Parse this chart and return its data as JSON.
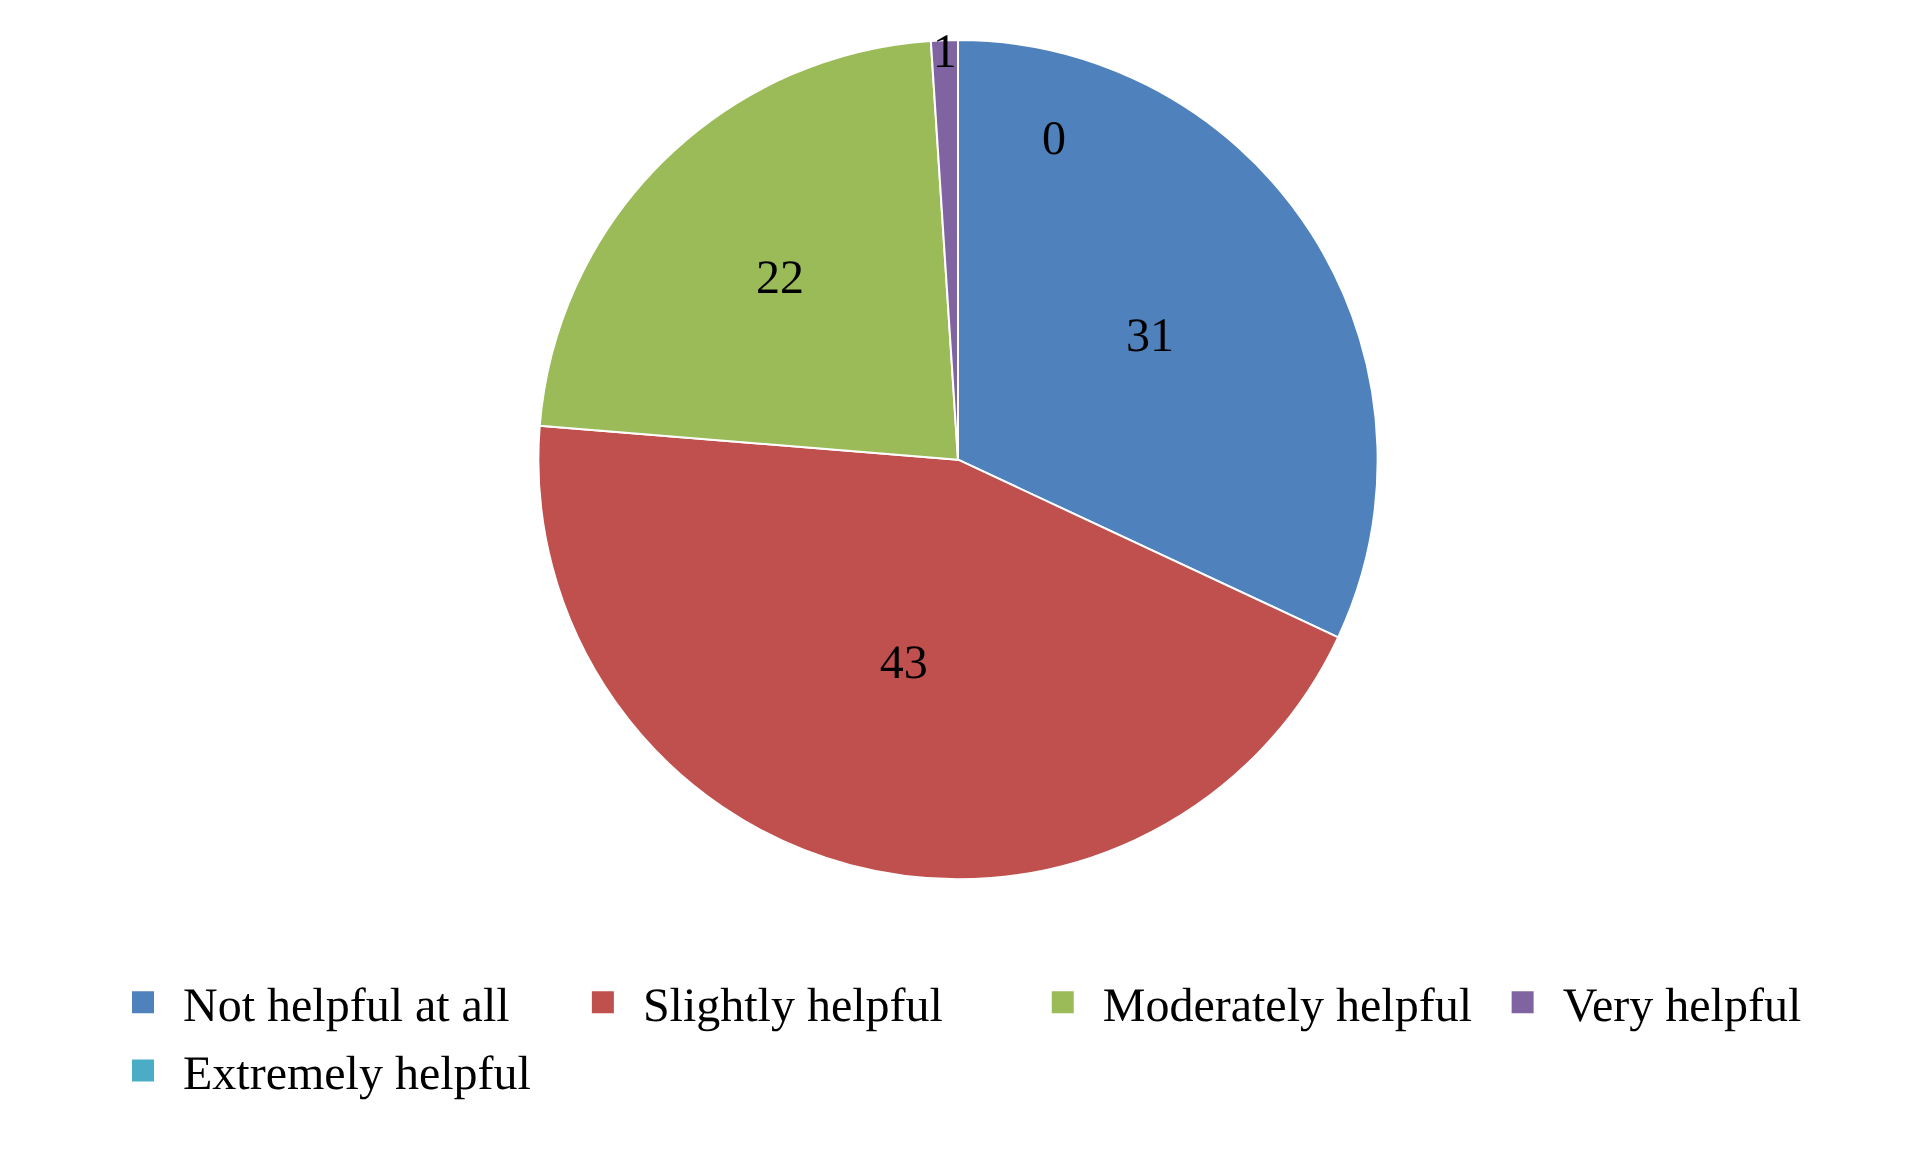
{
  "chart_data": {
    "type": "pie",
    "categories": [
      "Not helpful at all",
      "Slightly helpful",
      "Moderately helpful",
      "Very helpful",
      "Extremely helpful"
    ],
    "values": [
      31,
      43,
      22,
      1,
      0
    ],
    "colors": [
      "#4f81bd",
      "#c0504d",
      "#9bbb59",
      "#8064a2",
      "#4bacc6"
    ],
    "value_labels": [
      "31",
      "43",
      "22",
      "1",
      "0"
    ],
    "legend": "bottom"
  }
}
